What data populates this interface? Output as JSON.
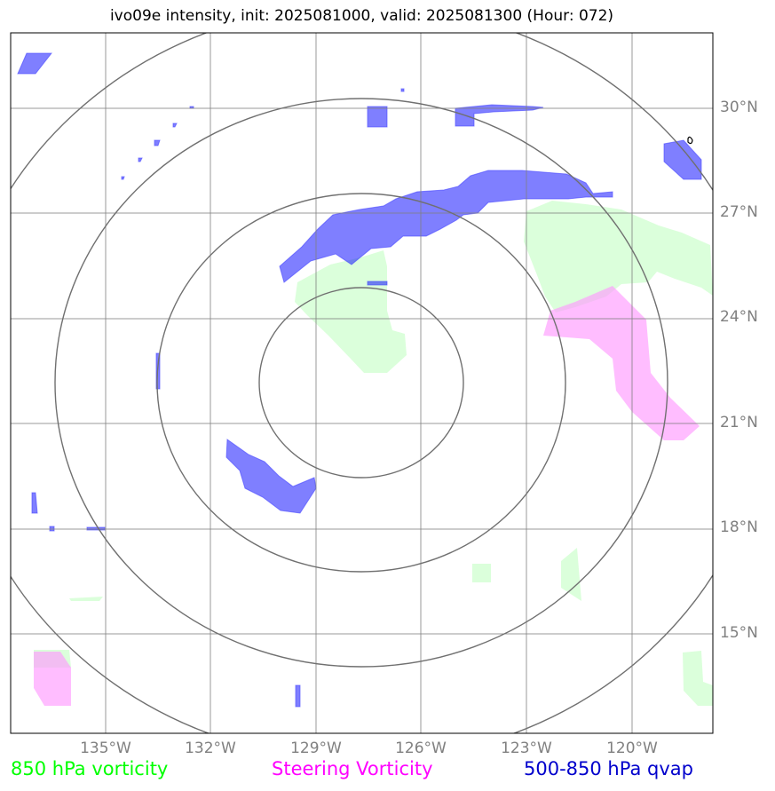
{
  "title": "ivo09e intensity, init: 2025081000, valid: 2025081300 (Hour: 072)",
  "colors": {
    "vorticity850": "#00ff00",
    "steering": "#ff00ff",
    "qvap": "#0000cc",
    "gridline": "#808080",
    "ring": "#707070"
  },
  "lat_labels": [
    "30°N",
    "27°N",
    "24°N",
    "21°N",
    "18°N",
    "15°N"
  ],
  "lon_labels": [
    "135°W",
    "132°W",
    "129°W",
    "126°W",
    "123°W",
    "120°W"
  ],
  "legend": {
    "vorticity850": "850 hPa vorticity",
    "steering": "Steering Vorticity",
    "qvap": "500-850 hPa qvap"
  }
}
